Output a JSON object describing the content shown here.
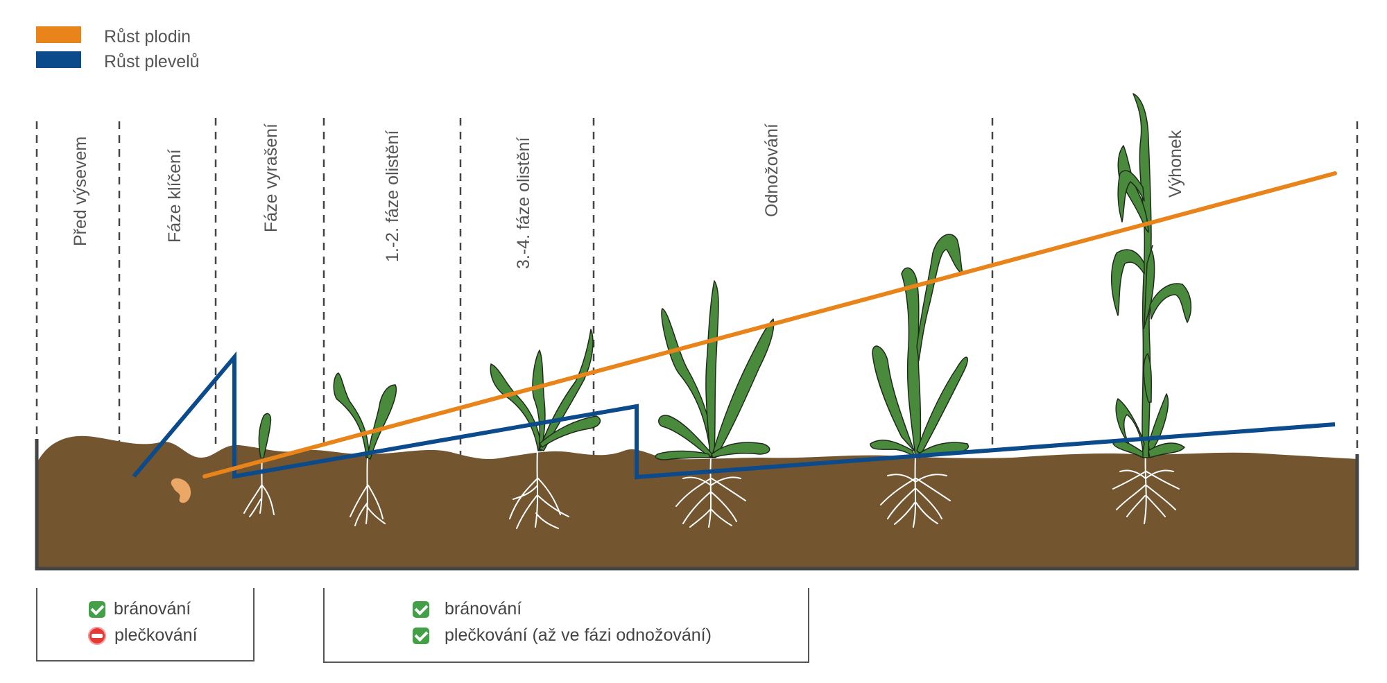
{
  "legend": [
    {
      "label": "Růst plodin",
      "color": "#e8841a"
    },
    {
      "label": "Růst plevelů",
      "color": "#0b4a8b"
    }
  ],
  "stages": [
    {
      "label": "Před výsevem"
    },
    {
      "label": "Fáze klíčení"
    },
    {
      "label": "Fáze vyrašení"
    },
    {
      "label": "1.-2. fáze olistění"
    },
    {
      "label": "3.-4. fáze olistění"
    },
    {
      "label": "Odnožování"
    },
    {
      "label": "Výhonek"
    }
  ],
  "notes": {
    "box1": {
      "items": [
        {
          "label": "bránování",
          "icon": "check-icon"
        },
        {
          "label": "plečkování",
          "icon": "no-entry-icon"
        }
      ]
    },
    "box2": {
      "items": [
        {
          "label": "bránování",
          "icon": "check-icon"
        },
        {
          "label": "plečkování (až ve fázi odnožování)",
          "icon": "check-icon"
        }
      ]
    }
  },
  "colors": {
    "soil": "#73552f",
    "plant": "#4a8a3c",
    "seed": "#eba765",
    "crop_line": "#e8841a",
    "weed_line": "#0b4a8b"
  }
}
